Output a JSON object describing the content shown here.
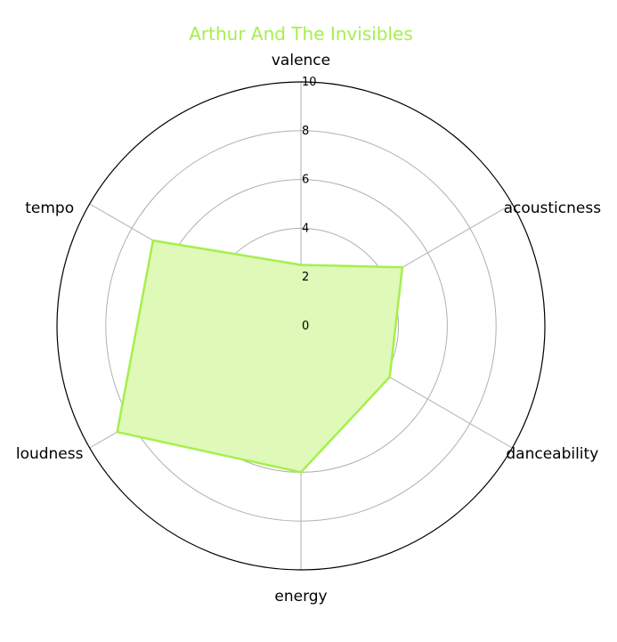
{
  "chart_data": {
    "type": "radar",
    "title": "Arthur And The Invisibles",
    "title_color": "#a6ef4d",
    "series_color": "#a6ef4d",
    "fill_color": "#dff9b8",
    "categories": [
      "valence",
      "acousticness",
      "danceability",
      "energy",
      "loudness",
      "tempo"
    ],
    "rlim": [
      0,
      10
    ],
    "radial_ticks": [
      0,
      2,
      4,
      6,
      8,
      10
    ],
    "grid": true,
    "series": [
      {
        "values": [
          2.5,
          4.8,
          4.2,
          6.0,
          8.7,
          7.0
        ]
      }
    ]
  }
}
